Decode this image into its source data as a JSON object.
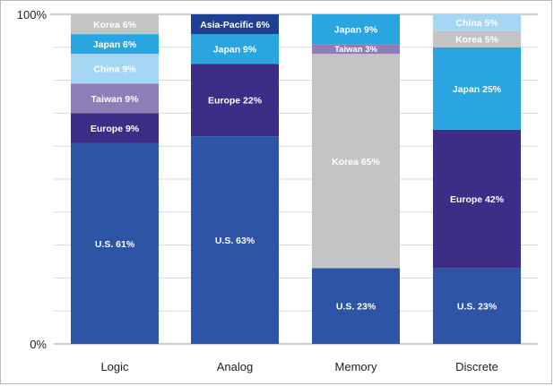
{
  "chart_data": {
    "type": "bar",
    "stacked": true,
    "ylim": [
      0,
      100
    ],
    "y_tick_labels": [
      "0%",
      "100%"
    ],
    "grid": true,
    "categories": [
      "Logic",
      "Analog",
      "Memory",
      "Discrete"
    ],
    "colors": {
      "U.S.": "#2e54a6",
      "Europe": "#3d2d86",
      "Taiwan": "#8d7eb7",
      "China": "#a5d6f3",
      "Japan": "#29a6e0",
      "Korea": "#c4c4c6",
      "Asia-Pacific": "#1f3f93"
    },
    "stacks": [
      [
        {
          "region": "U.S.",
          "value": 61,
          "label": "U.S. 61%"
        },
        {
          "region": "Europe",
          "value": 9,
          "label": "Europe 9%"
        },
        {
          "region": "Taiwan",
          "value": 9,
          "label": "Taiwan 9%"
        },
        {
          "region": "China",
          "value": 9,
          "label": "China 9%"
        },
        {
          "region": "Japan",
          "value": 6,
          "label": "Japan 6%"
        },
        {
          "region": "Korea",
          "value": 6,
          "label": "Korea 6%"
        }
      ],
      [
        {
          "region": "U.S.",
          "value": 63,
          "label": "U.S. 63%"
        },
        {
          "region": "Europe",
          "value": 22,
          "label": "Europe 22%"
        },
        {
          "region": "Japan",
          "value": 9,
          "label": "Japan 9%"
        },
        {
          "region": "Asia-Pacific",
          "value": 6,
          "label": "Asia-Pacific 6%"
        }
      ],
      [
        {
          "region": "U.S.",
          "value": 23,
          "label": "U.S. 23%"
        },
        {
          "region": "Korea",
          "value": 65,
          "label": "Korea 65%"
        },
        {
          "region": "Taiwan",
          "value": 3,
          "label": "Taiwan 3%"
        },
        {
          "region": "Japan",
          "value": 9,
          "label": "Japan 9%"
        }
      ],
      [
        {
          "region": "U.S.",
          "value": 23,
          "label": "U.S. 23%"
        },
        {
          "region": "Europe",
          "value": 42,
          "label": "Europe 42%"
        },
        {
          "region": "Japan",
          "value": 25,
          "label": "Japan 25%"
        },
        {
          "region": "Korea",
          "value": 5,
          "label": "Korea 5%"
        },
        {
          "region": "China",
          "value": 5,
          "label": "China 5%"
        }
      ]
    ]
  }
}
